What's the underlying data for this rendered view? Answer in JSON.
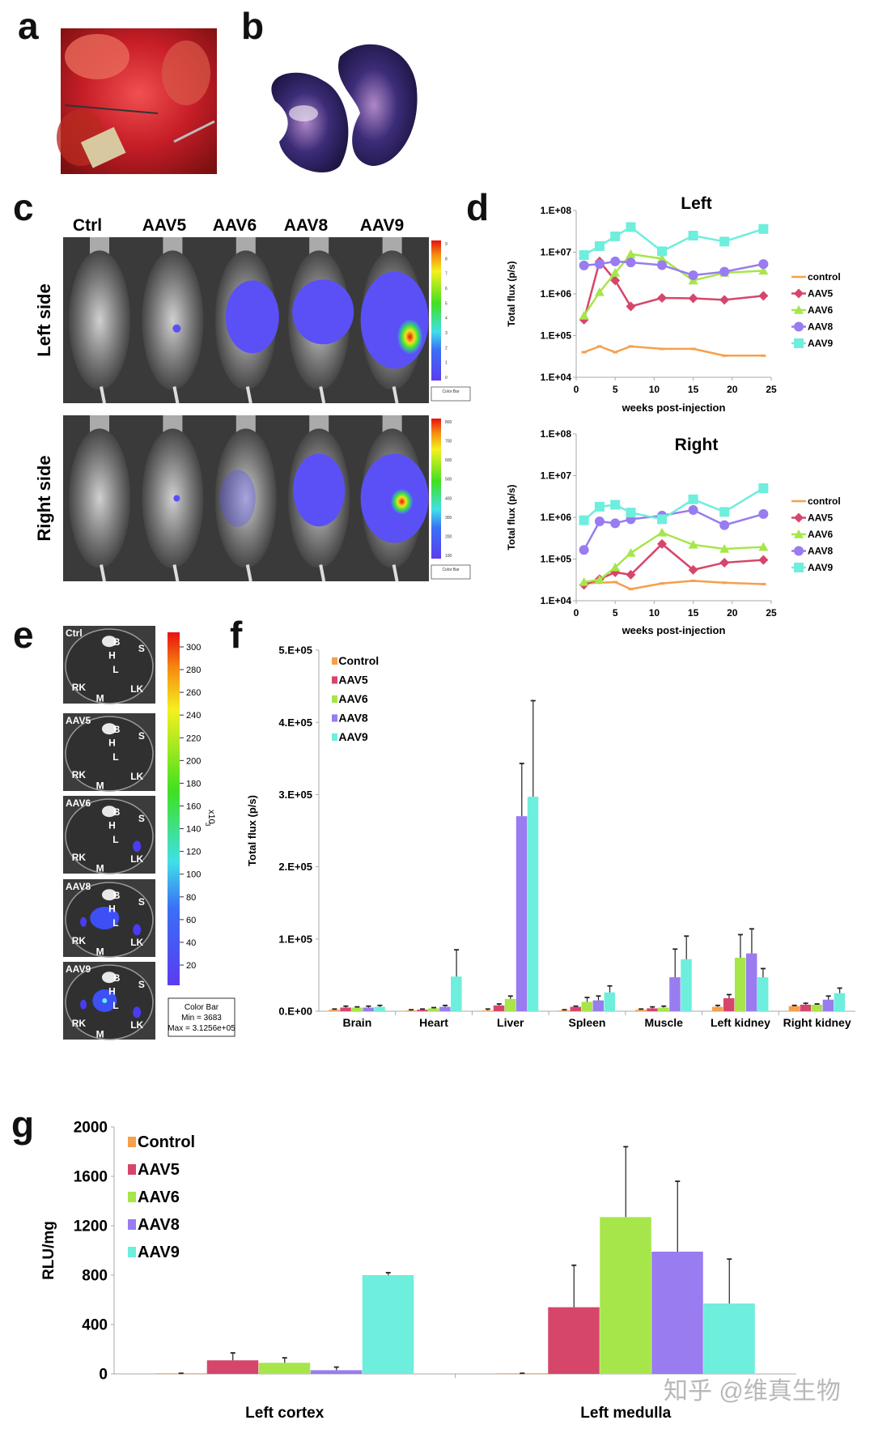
{
  "panel_labels": {
    "a": "a",
    "b": "b",
    "c": "c",
    "d": "d",
    "e": "e",
    "f": "f",
    "g": "g"
  },
  "panel_c": {
    "columns": [
      "Ctrl",
      "AAV5",
      "AAV6",
      "AAV8",
      "AAV9"
    ],
    "rows": [
      "Left side",
      "Right side"
    ],
    "colorbar_top_ticks": [
      "9",
      "8",
      "7",
      "6",
      "5",
      "4",
      "3",
      "2",
      "1",
      "0"
    ],
    "colorbar_bottom_ticks": [
      "800",
      "700",
      "600",
      "500",
      "400",
      "300",
      "200",
      "100"
    ],
    "colorbar_box_title": "Color Bar"
  },
  "panel_e": {
    "dishes": [
      {
        "label": "Ctrl",
        "organs": [
          "B",
          "H",
          "S",
          "L",
          "RK",
          "LK",
          "M"
        ]
      },
      {
        "label": "AAV5",
        "organs": [
          "B",
          "H",
          "S",
          "L",
          "RK",
          "LK",
          "M"
        ]
      },
      {
        "label": "AAV6",
        "organs": [
          "B",
          "H",
          "S",
          "L",
          "RK",
          "LK",
          "M"
        ]
      },
      {
        "label": "AAV8",
        "organs": [
          "B",
          "H",
          "S",
          "L",
          "RK",
          "LK",
          "M"
        ]
      },
      {
        "label": "AAV9",
        "organs": [
          "B",
          "H",
          "S",
          "L",
          "RK",
          "LK",
          "M"
        ]
      }
    ],
    "colorbar_ticks": [
      "300",
      "280",
      "260",
      "240",
      "220",
      "200",
      "180",
      "160",
      "140",
      "120",
      "100",
      "80",
      "60",
      "40",
      "20"
    ],
    "colorbar_unit": "x10",
    "colorbar_unit_exp": "3",
    "colorbar_box": [
      "Color Bar",
      "Min = 3683",
      "Max = 3.1256e+05"
    ]
  },
  "watermark": "知乎 @维真生物",
  "colors": {
    "control": "#f5a04e",
    "AAV5": "#d6466a",
    "AAV6": "#a6e64a",
    "AAV8": "#987cf0",
    "AAV9": "#6eeedc"
  },
  "chart_data": [
    {
      "id": "d-left",
      "type": "line",
      "title": "Left",
      "xlabel": "weeks post-injection",
      "ylabel": "Total flux (p/s)",
      "yscale": "log",
      "ylim": [
        10000.0,
        100000000.0
      ],
      "xlim": [
        0,
        25
      ],
      "xticks": [
        "0",
        "5",
        "10",
        "15",
        "20",
        "25"
      ],
      "yticks": [
        "1.E+04",
        "1.E+05",
        "1.E+06",
        "1.E+07",
        "1.E+08"
      ],
      "legend": "right",
      "x": [
        1,
        3,
        5,
        7,
        11,
        15,
        19,
        24
      ],
      "series": [
        {
          "name": "control",
          "marker": "none",
          "values": [
            40000,
            55000,
            40000,
            55000,
            48000,
            48000,
            33000,
            33000
          ]
        },
        {
          "name": "AAV5",
          "marker": "diamond",
          "values": [
            240000,
            6000000,
            2100000,
            500000,
            800000,
            780000,
            720000,
            900000
          ]
        },
        {
          "name": "AAV6",
          "marker": "triangle",
          "values": [
            300000,
            1100000,
            3200000,
            9000000,
            7000000,
            2100000,
            3200000,
            3600000
          ]
        },
        {
          "name": "AAV8",
          "marker": "circle",
          "values": [
            4800000,
            5200000,
            6000000,
            5700000,
            4900000,
            2800000,
            3400000,
            5200000
          ]
        },
        {
          "name": "AAV9",
          "marker": "square",
          "values": [
            8500000,
            14000000,
            24000000,
            40000000,
            10500000,
            25000000,
            18000000,
            36000000
          ]
        }
      ]
    },
    {
      "id": "d-right",
      "type": "line",
      "title": "Right",
      "xlabel": "weeks post-injection",
      "ylabel": "Total flux (p/s)",
      "yscale": "log",
      "ylim": [
        10000.0,
        100000000.0
      ],
      "xlim": [
        0,
        25
      ],
      "xticks": [
        "0",
        "5",
        "10",
        "15",
        "20",
        "25"
      ],
      "yticks": [
        "1.E+04",
        "1.E+05",
        "1.E+06",
        "1.E+07",
        "1.E+08"
      ],
      "legend": "right",
      "x": [
        1,
        3,
        5,
        7,
        11,
        15,
        19,
        24
      ],
      "series": [
        {
          "name": "control",
          "marker": "none",
          "values": [
            26000,
            27000,
            28000,
            19000,
            26000,
            30000,
            27000,
            25000
          ]
        },
        {
          "name": "AAV5",
          "marker": "diamond",
          "values": [
            24000,
            33000,
            48000,
            42000,
            230000,
            55000,
            82000,
            95000
          ]
        },
        {
          "name": "AAV6",
          "marker": "triangle",
          "values": [
            28000,
            32000,
            63000,
            140000,
            430000,
            220000,
            175000,
            195000
          ]
        },
        {
          "name": "AAV8",
          "marker": "circle",
          "values": [
            165000,
            800000,
            720000,
            900000,
            1100000,
            1500000,
            650000,
            1200000
          ]
        },
        {
          "name": "AAV9",
          "marker": "square",
          "values": [
            850000,
            1800000,
            2000000,
            1300000,
            900000,
            2700000,
            1350000,
            5000000
          ]
        }
      ]
    },
    {
      "id": "f",
      "type": "bar",
      "title": "",
      "xlabel": "",
      "ylabel": "Total flux (p/s)",
      "ylim": [
        0,
        500000
      ],
      "yticks": [
        "0.E+00",
        "1.E+05",
        "2.E+05",
        "3.E+05",
        "4.E+05",
        "5.E+05"
      ],
      "legend": "top-left",
      "categories": [
        "Brain",
        "Heart",
        "Liver",
        "Spleen",
        "Muscle",
        "Left kidney",
        "Right kidney"
      ],
      "series": [
        {
          "name": "Control",
          "values": [
            2000,
            1000,
            1000,
            1000,
            2000,
            6000,
            7000
          ],
          "error_top": [
            3000,
            2000,
            3000,
            2000,
            3000,
            8000,
            8000
          ]
        },
        {
          "name": "AAV5",
          "values": [
            5000,
            2000,
            8000,
            6000,
            4000,
            18000,
            9000
          ],
          "error_top": [
            7000,
            3000,
            10000,
            7000,
            6000,
            23000,
            11000
          ]
        },
        {
          "name": "AAV6",
          "values": [
            5000,
            4000,
            17000,
            13000,
            5000,
            74000,
            9000
          ],
          "error_top": [
            6000,
            5000,
            21000,
            19000,
            7000,
            106000,
            10000
          ]
        },
        {
          "name": "AAV8",
          "values": [
            5000,
            6000,
            270000,
            15000,
            47000,
            80000,
            16000
          ],
          "error_top": [
            7000,
            8000,
            343000,
            21000,
            86000,
            114000,
            21000
          ]
        },
        {
          "name": "AAV9",
          "values": [
            6000,
            48000,
            297000,
            26000,
            72000,
            47000,
            25000
          ],
          "error_top": [
            8000,
            85000,
            430000,
            35000,
            104000,
            59000,
            32000
          ]
        }
      ]
    },
    {
      "id": "g",
      "type": "bar",
      "title": "",
      "xlabel": "",
      "ylabel": "RLU/mg",
      "ylim": [
        0,
        2000
      ],
      "yticks": [
        "0",
        "400",
        "800",
        "1200",
        "1600",
        "2000"
      ],
      "legend": "top-left",
      "categories": [
        "Left cortex",
        "Left medulla"
      ],
      "series": [
        {
          "name": "Control",
          "values": [
            5,
            5
          ],
          "error_top": [
            5,
            5
          ]
        },
        {
          "name": "AAV5",
          "values": [
            110,
            540
          ],
          "error_top": [
            170,
            880
          ]
        },
        {
          "name": "AAV6",
          "values": [
            90,
            1270
          ],
          "error_top": [
            130,
            1840
          ]
        },
        {
          "name": "AAV8",
          "values": [
            30,
            990
          ],
          "error_top": [
            55,
            1560
          ]
        },
        {
          "name": "AAV9",
          "values": [
            800,
            570
          ],
          "error_top": [
            820,
            930
          ]
        }
      ]
    }
  ]
}
